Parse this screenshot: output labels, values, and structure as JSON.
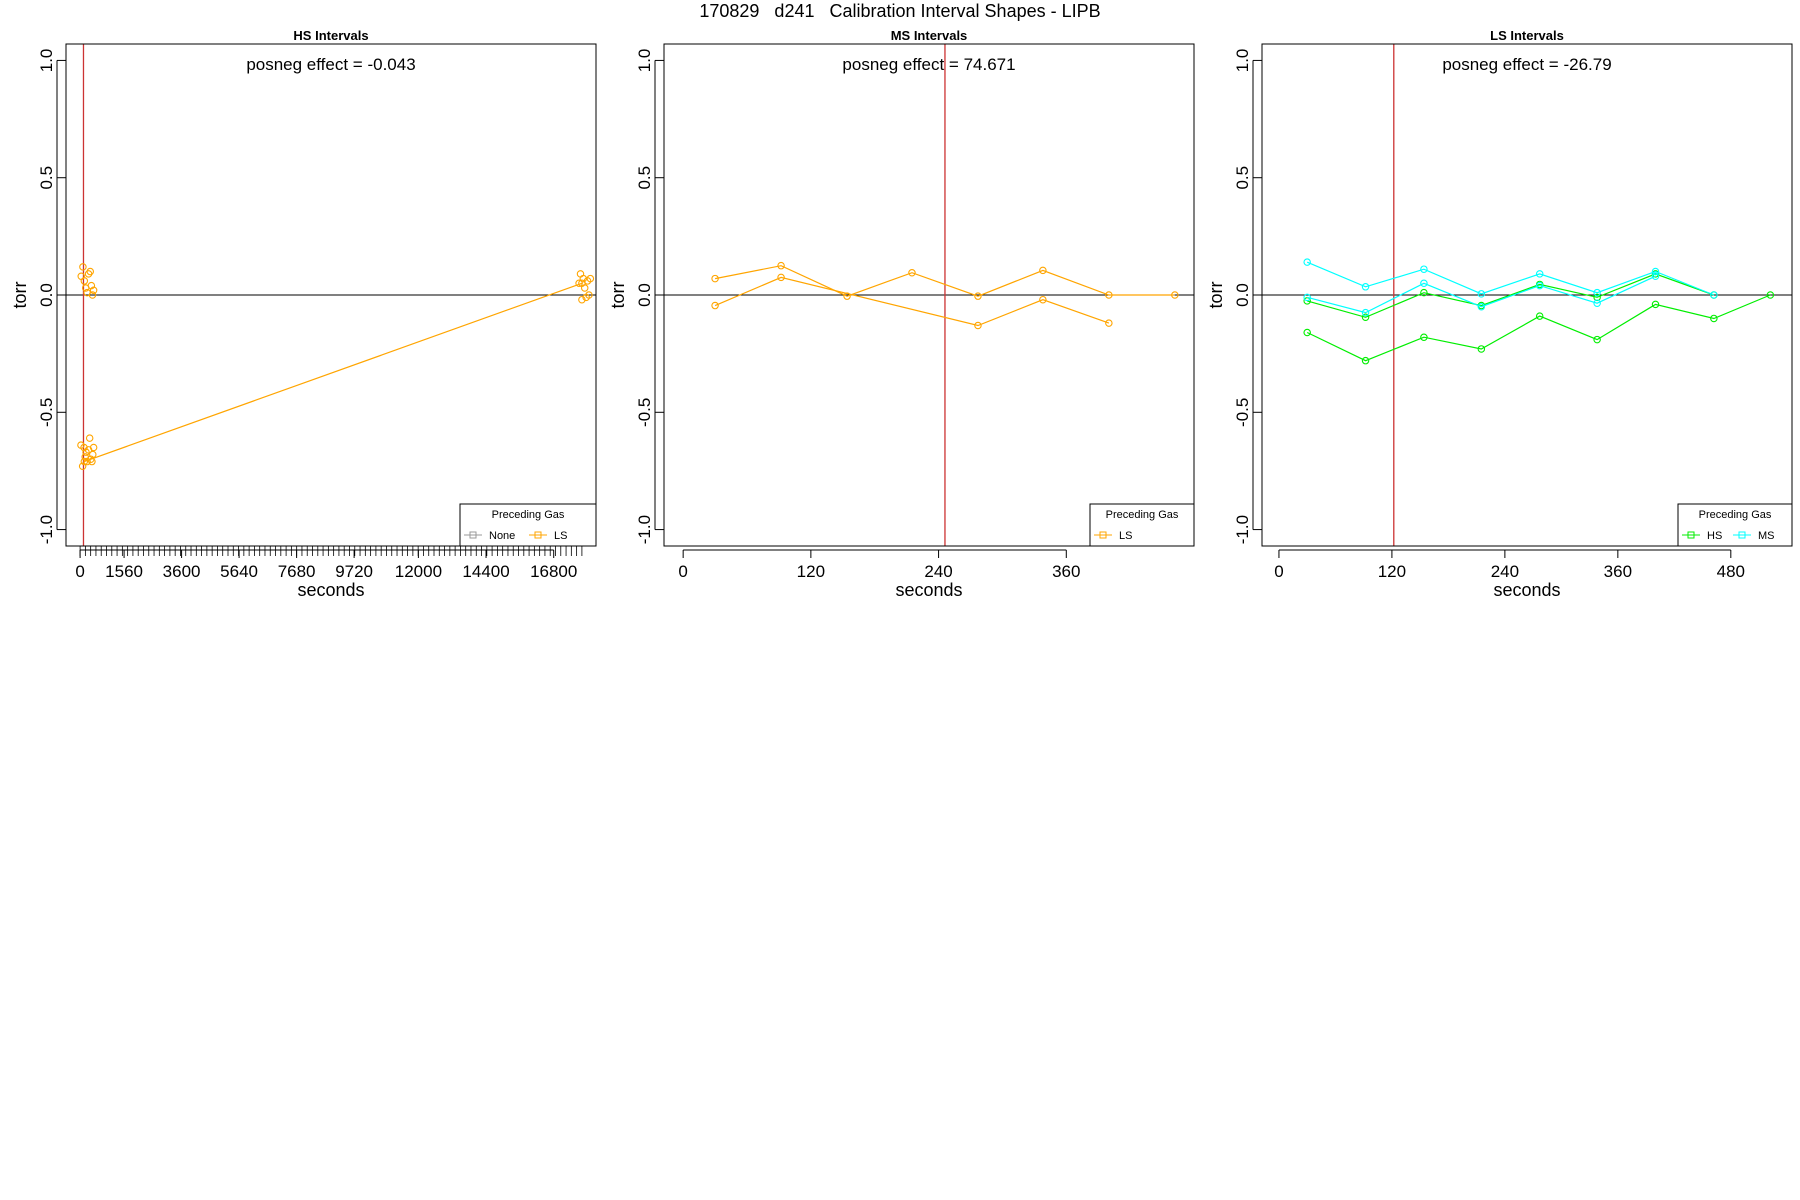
{
  "figure": {
    "title": "170829   d241   Calibration Interval Shapes - LIPB"
  },
  "colors": {
    "ls": "#FFA500",
    "hs": "#00EE00",
    "ms": "#00FFFF",
    "none": "#999999",
    "ref_line": "#CC3333",
    "zero_line": "#000000"
  },
  "chart_data": [
    {
      "type": "scatter",
      "title": "HS Intervals",
      "annotation": "posneg effect = -0.043",
      "xlabel": "seconds",
      "ylabel": "torr",
      "xlim": [
        -500,
        18300
      ],
      "ylim": [
        -1.07,
        1.07
      ],
      "x_ticks": [
        0,
        1560,
        3600,
        5640,
        7680,
        9720,
        12000,
        14400,
        16800
      ],
      "y_ticks": [
        -1.0,
        -0.5,
        0.0,
        0.5,
        1.0
      ],
      "y_tick_labels": [
        "-1.0",
        "-0.5",
        "0.0",
        "0.5",
        "1.0"
      ],
      "ref_x": 120,
      "zero_line": 0,
      "legend": {
        "title": "Preceding Gas",
        "position": "bottom-right",
        "entries": [
          {
            "name": "None",
            "color_key": "none"
          },
          {
            "name": "LS",
            "color_key": "ls"
          }
        ]
      },
      "series": [
        {
          "color_key": "ls",
          "line": true,
          "x": [
            150,
            17800
          ],
          "y": [
            -0.71,
            0.05
          ]
        },
        {
          "color_key": "ls",
          "line": false,
          "x": [
            30,
            90,
            140,
            180,
            210,
            250,
            300,
            340,
            380,
            420,
            450,
            480
          ],
          "y": [
            -0.64,
            -0.73,
            -0.65,
            -0.69,
            -0.67,
            -0.71,
            -0.66,
            -0.61,
            -0.7,
            -0.71,
            -0.68,
            -0.65
          ]
        },
        {
          "color_key": "ls",
          "line": false,
          "x": [
            40,
            100,
            150,
            200,
            250,
            300,
            360,
            400,
            440,
            480
          ],
          "y": [
            0.08,
            0.12,
            0.06,
            0.03,
            0.01,
            0.09,
            0.1,
            0.04,
            0.0,
            0.02
          ]
        },
        {
          "color_key": "ls",
          "line": false,
          "x": [
            17700,
            17750,
            17800,
            17850,
            17900,
            17950,
            18000,
            18050,
            18100
          ],
          "y": [
            0.05,
            0.09,
            -0.02,
            0.07,
            0.03,
            -0.01,
            0.06,
            0.0,
            0.07
          ]
        }
      ]
    },
    {
      "type": "line",
      "title": "MS Intervals",
      "annotation": "posneg effect = 74.671",
      "xlabel": "seconds",
      "ylabel": "torr",
      "xlim": [
        -18,
        480
      ],
      "ylim": [
        -1.07,
        1.07
      ],
      "x_ticks": [
        0,
        120,
        240,
        360
      ],
      "y_ticks": [
        -1.0,
        -0.5,
        0.0,
        0.5,
        1.0
      ],
      "y_tick_labels": [
        "-1.0",
        "-0.5",
        "0.0",
        "0.5",
        "1.0"
      ],
      "ref_x": 246,
      "zero_line": 0,
      "legend": {
        "title": "Preceding Gas",
        "position": "bottom-right",
        "entries": [
          {
            "name": "LS",
            "color_key": "ls"
          }
        ]
      },
      "series": [
        {
          "color_key": "ls",
          "line": true,
          "x": [
            30,
            92,
            154,
            215,
            277,
            338,
            400,
            462
          ],
          "y": [
            0.07,
            0.125,
            -0.005,
            0.095,
            -0.005,
            0.105,
            0.0,
            0.0
          ]
        },
        {
          "color_key": "ls",
          "line": true,
          "x": [
            30,
            92,
            277,
            338,
            400
          ],
          "y": [
            -0.045,
            0.075,
            -0.13,
            -0.02,
            -0.12
          ]
        }
      ]
    },
    {
      "type": "line",
      "title": "LS Intervals",
      "annotation": "posneg effect = -26.79",
      "xlabel": "seconds",
      "ylabel": "torr",
      "xlim": [
        -18,
        545
      ],
      "ylim": [
        -1.07,
        1.07
      ],
      "x_ticks": [
        0,
        120,
        240,
        360,
        480
      ],
      "y_ticks": [
        -1.0,
        -0.5,
        0.0,
        0.5,
        1.0
      ],
      "y_tick_labels": [
        "-1.0",
        "-0.5",
        "0.0",
        "0.5",
        "1.0"
      ],
      "ref_x": 122,
      "zero_line": 0,
      "legend": {
        "title": "Preceding Gas",
        "position": "bottom-right",
        "entries": [
          {
            "name": "HS",
            "color_key": "hs"
          },
          {
            "name": "MS",
            "color_key": "ms"
          }
        ]
      },
      "series": [
        {
          "color_key": "hs",
          "line": true,
          "x": [
            30,
            92,
            154,
            215,
            277,
            338,
            400,
            462,
            522
          ],
          "y": [
            -0.16,
            -0.28,
            -0.18,
            -0.23,
            -0.09,
            -0.19,
            -0.04,
            -0.1,
            0.0
          ]
        },
        {
          "color_key": "hs",
          "line": true,
          "x": [
            30,
            92,
            154,
            215,
            277,
            338,
            400,
            462
          ],
          "y": [
            -0.025,
            -0.095,
            0.01,
            -0.045,
            0.045,
            -0.01,
            0.09,
            0.0
          ]
        },
        {
          "color_key": "ms",
          "line": true,
          "x": [
            30,
            92,
            154,
            215,
            277,
            338,
            400,
            462
          ],
          "y": [
            0.14,
            0.035,
            0.11,
            0.005,
            0.09,
            0.01,
            0.1,
            0.0
          ]
        },
        {
          "color_key": "ms",
          "line": true,
          "x": [
            30,
            92,
            154,
            215,
            277,
            338,
            400
          ],
          "y": [
            -0.01,
            -0.075,
            0.05,
            -0.05,
            0.04,
            -0.035,
            0.08
          ]
        }
      ]
    }
  ]
}
